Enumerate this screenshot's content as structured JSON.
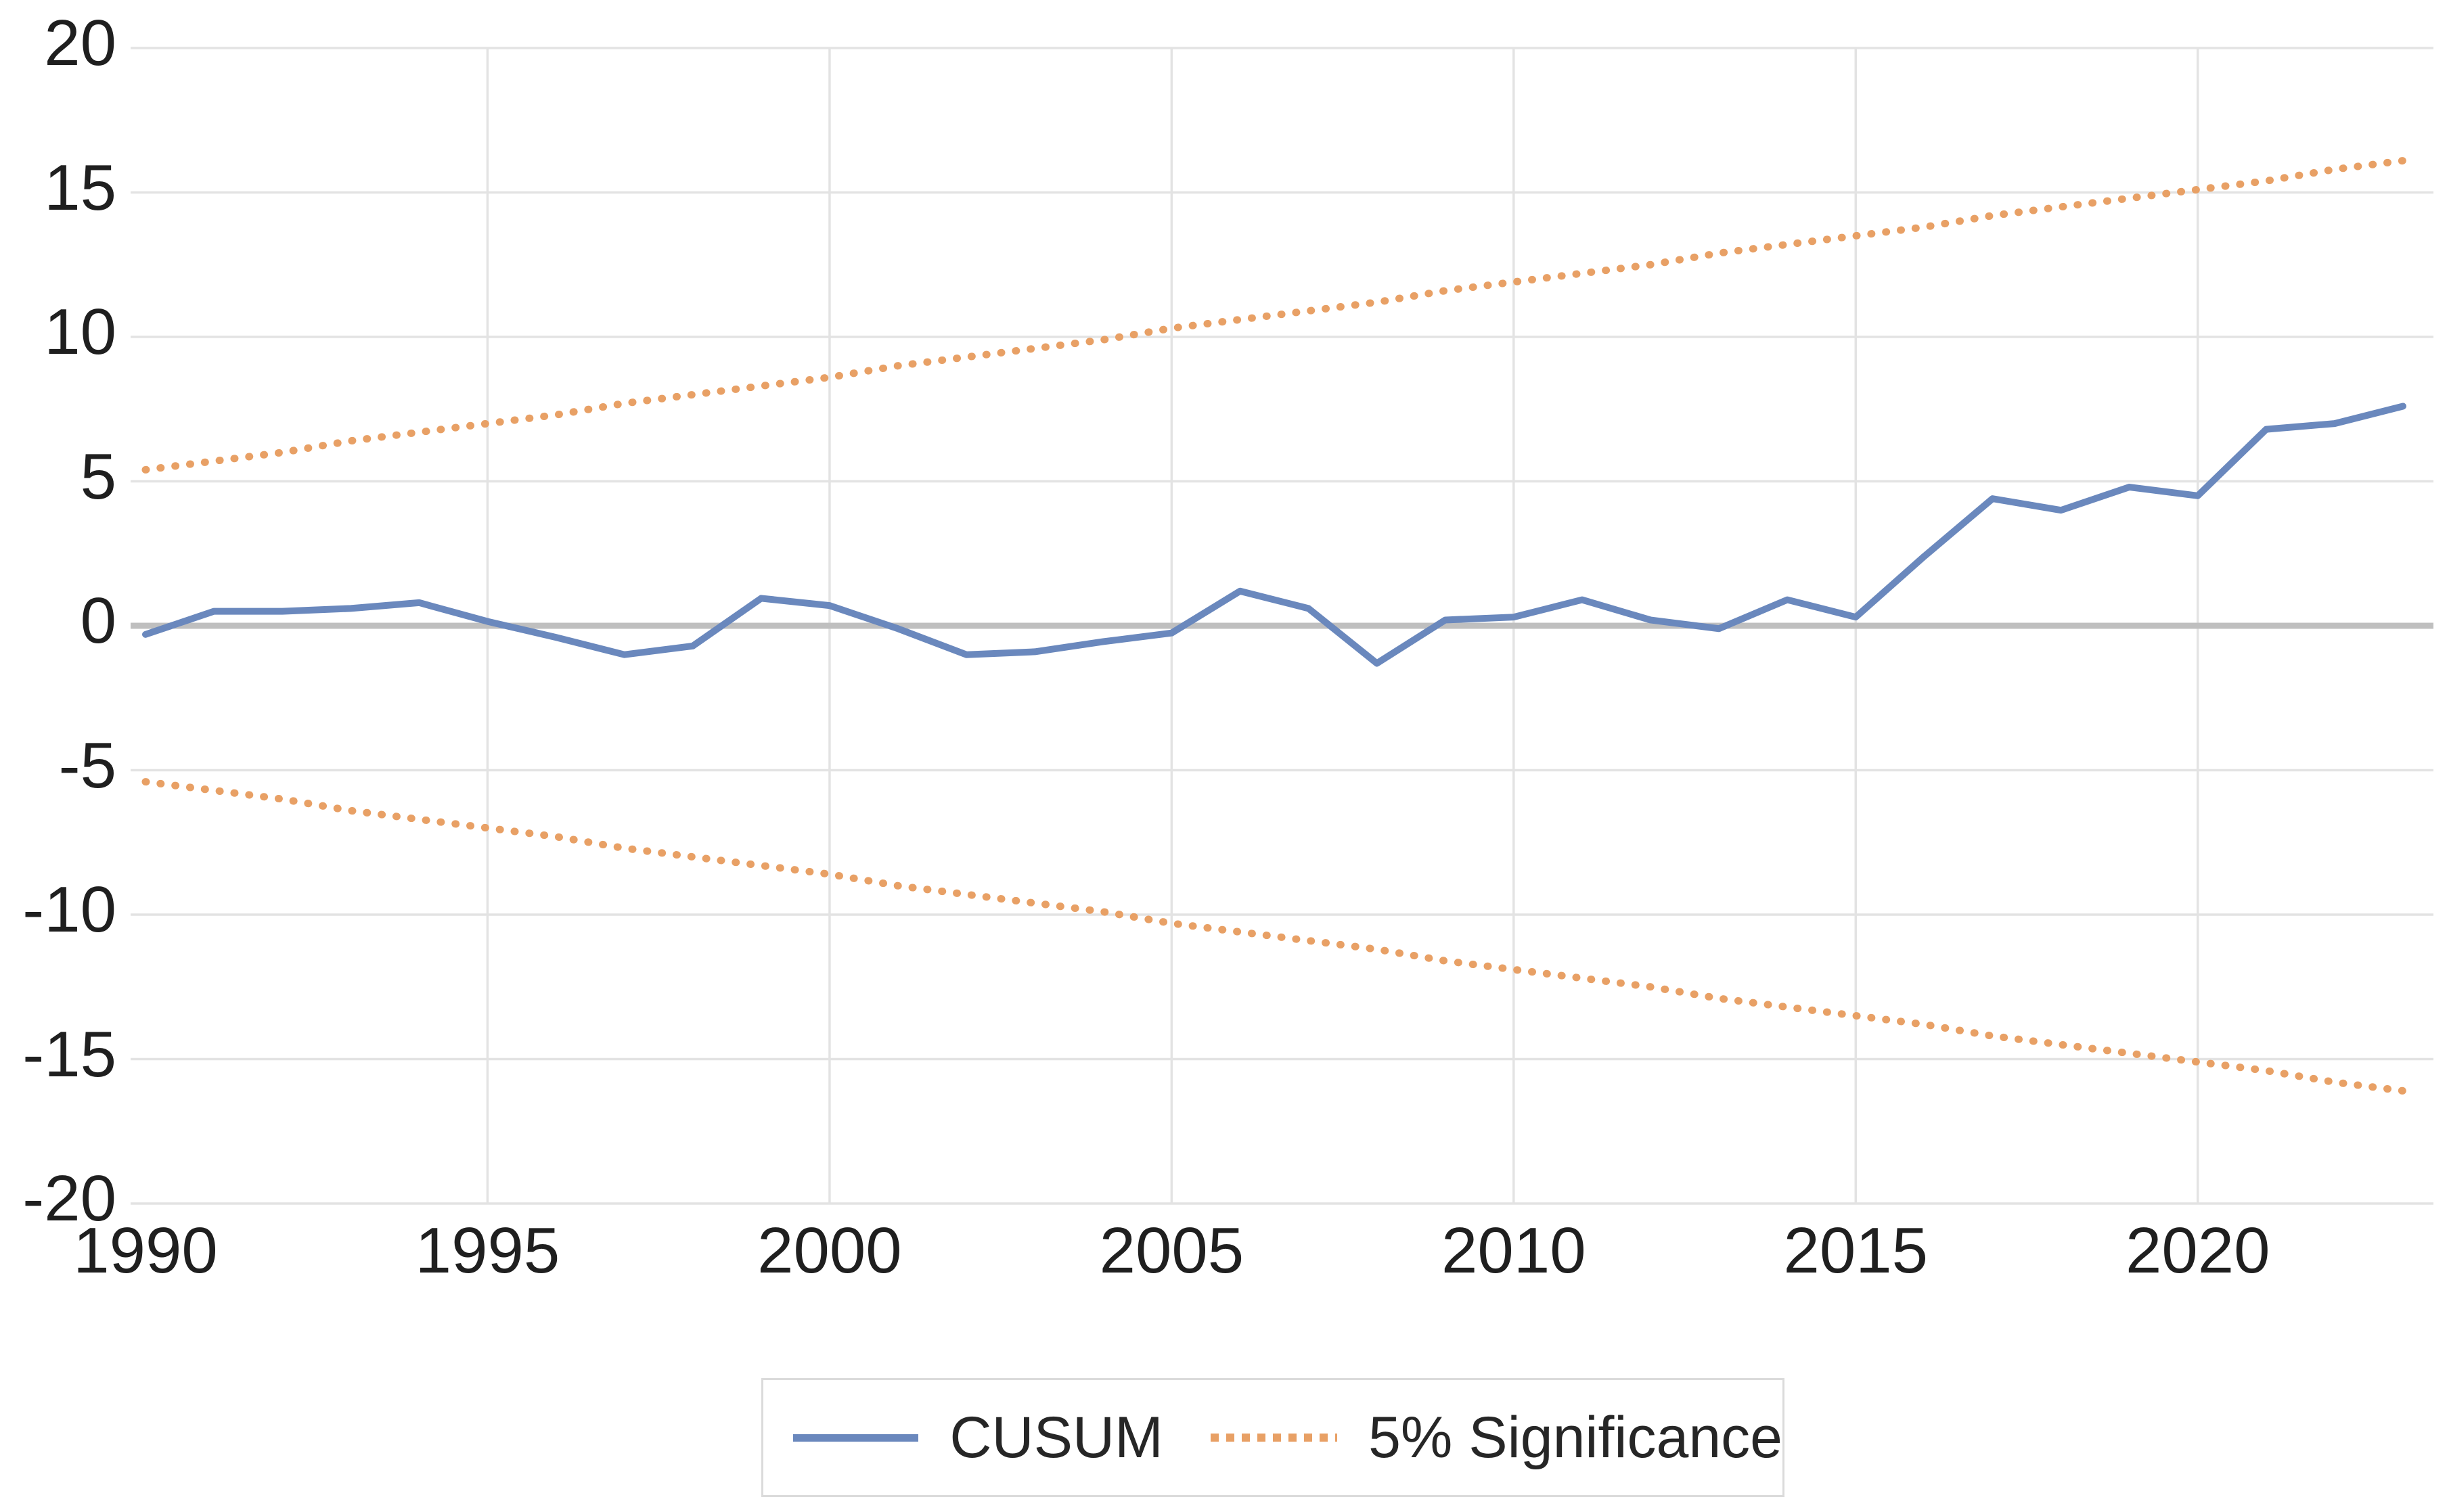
{
  "chart_data": {
    "type": "line",
    "title": "",
    "xlabel": "",
    "ylabel": "",
    "x": [
      1990,
      1991,
      1992,
      1993,
      1994,
      1995,
      1996,
      1997,
      1998,
      1999,
      2000,
      2001,
      2002,
      2003,
      2004,
      2005,
      2006,
      2007,
      2008,
      2009,
      2010,
      2011,
      2012,
      2013,
      2014,
      2015,
      2016,
      2017,
      2018,
      2019,
      2020,
      2021,
      2022,
      2023
    ],
    "series": [
      {
        "name": "CUSUM",
        "style": "solid",
        "color": "#6A88BD",
        "values": [
          -0.3,
          0.5,
          0.5,
          0.6,
          0.8,
          0.15,
          -0.4,
          -1.0,
          -0.7,
          0.95,
          0.7,
          -0.1,
          -1.0,
          -0.9,
          -0.55,
          -0.25,
          1.2,
          0.6,
          -1.3,
          0.2,
          0.3,
          0.9,
          0.2,
          -0.1,
          0.9,
          0.3,
          2.4,
          4.4,
          4.0,
          4.8,
          4.5,
          6.8,
          7.0,
          7.6
        ]
      },
      {
        "name": "5% Significance (upper bound)",
        "style": "dotted",
        "color": "#E8A065",
        "values": [
          5.4,
          5.7,
          6.0,
          6.4,
          6.7,
          7.0,
          7.3,
          7.7,
          8.0,
          8.3,
          8.6,
          9.0,
          9.3,
          9.6,
          9.9,
          10.3,
          10.6,
          10.9,
          11.2,
          11.6,
          11.9,
          12.2,
          12.5,
          12.9,
          13.2,
          13.5,
          13.8,
          14.2,
          14.5,
          14.8,
          15.1,
          15.4,
          15.8,
          16.1
        ]
      },
      {
        "name": "5% Significance (lower bound)",
        "style": "dotted",
        "color": "#E8A065",
        "values": [
          -5.4,
          -5.7,
          -6.0,
          -6.4,
          -6.7,
          -7.0,
          -7.3,
          -7.7,
          -8.0,
          -8.3,
          -8.6,
          -9.0,
          -9.3,
          -9.6,
          -9.9,
          -10.3,
          -10.6,
          -10.9,
          -11.2,
          -11.6,
          -11.9,
          -12.2,
          -12.5,
          -12.9,
          -13.2,
          -13.5,
          -13.8,
          -14.2,
          -14.5,
          -14.8,
          -15.1,
          -15.4,
          -15.8,
          -16.1
        ]
      }
    ],
    "ylim": [
      -20,
      20
    ],
    "xlim": [
      1990,
      2023
    ],
    "yticks": [
      20,
      15,
      10,
      5,
      0,
      -5,
      -10,
      -15,
      -20
    ],
    "xticks": [
      1990,
      1995,
      2000,
      2005,
      2010,
      2015,
      2020
    ],
    "ytick_labels": [
      "20",
      "15",
      "10",
      "5",
      "0",
      "-5",
      "-10",
      "-15",
      "-20"
    ],
    "xtick_labels": [
      "1990",
      "1995",
      "2000",
      "2005",
      "2010",
      "2015",
      "2020"
    ],
    "grid": true,
    "zero_line": true,
    "legend_position": "bottom"
  },
  "legend": {
    "cusum_label": "CUSUM",
    "significance_label": "5% Significance"
  },
  "colors": {
    "cusum": "#6A88BD",
    "significance": "#E8A065",
    "gridline": "#E3E3E3",
    "zero_line": "#BFBFBF",
    "text": "#1f1f1f",
    "legend_border": "#DBDBDB",
    "background": "#ffffff"
  }
}
